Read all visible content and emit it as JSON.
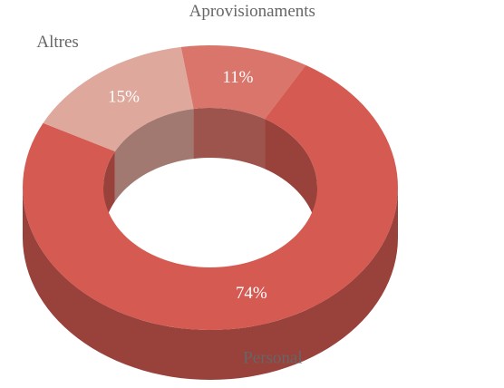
{
  "chart_data": {
    "type": "donut3d",
    "categories": [
      "Aprovisionaments",
      "Personal",
      "Altres"
    ],
    "values": [
      11,
      74,
      15
    ],
    "value_labels": [
      "11%",
      "74%",
      "15%"
    ],
    "colors": [
      "#d9756a",
      "#d45a52",
      "#dfa89c"
    ]
  }
}
